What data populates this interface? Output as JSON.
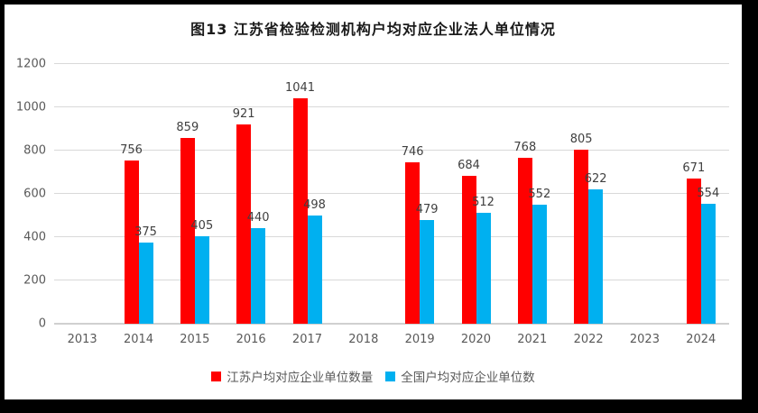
{
  "title": "图13  江苏省检验检测机构户均对应企业法人单位情况",
  "chart_data": {
    "type": "bar",
    "title": "图13  江苏省检验检测机构户均对应企业法人单位情况",
    "categories": [
      "2013",
      "2014",
      "2015",
      "2016",
      "2017",
      "2018",
      "2019",
      "2020",
      "2021",
      "2022",
      "2023",
      "2024"
    ],
    "series": [
      {
        "name": "江苏户均对应企业单位数量",
        "color": "#ff0000",
        "values": [
          null,
          756,
          859,
          921,
          1041,
          null,
          746,
          684,
          768,
          805,
          null,
          671
        ]
      },
      {
        "name": "全国户均对应企业单位数",
        "color": "#00b0f0",
        "values": [
          null,
          375,
          405,
          440,
          498,
          null,
          479,
          512,
          552,
          622,
          null,
          554
        ]
      }
    ],
    "xlabel": "",
    "ylabel": "",
    "ylim": [
      0,
      1200
    ],
    "yticks": [
      0,
      200,
      400,
      600,
      800,
      1000,
      1200
    ],
    "grid": true,
    "legend_position": "bottom",
    "data_labels": true
  },
  "colors": {
    "frame_border": "#000000",
    "gridline": "#d9d9d9",
    "axis_text": "#595959",
    "data_label_text": "#404040",
    "title_text": "#1a1a1a"
  }
}
